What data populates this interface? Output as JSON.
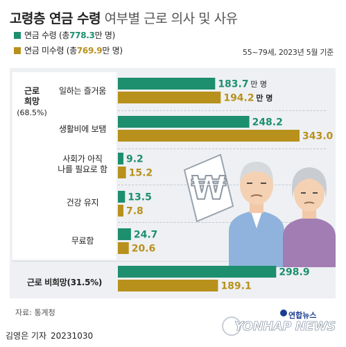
{
  "header": {
    "title_bold": "고령층 연금 수령",
    "title_rest": "여부별 근로 의사 및 사유"
  },
  "legend": {
    "series1_prefix": "연금 수령 (총 ",
    "series1_total": "778.3",
    "series1_suffix": "만 명)",
    "series2_prefix": "연금 미수령 (총 ",
    "series2_total": "769.9",
    "series2_suffix": "만 명)"
  },
  "note": "55~79세, 2023년 5월 기준",
  "groups": {
    "hope_label": "근로\n희망",
    "hope_pct": "(68.5%)",
    "nohope_label": "근로 비희망(31.5%)"
  },
  "categories": [
    {
      "label": "일하는 즐거움"
    },
    {
      "label": "생활비에 보탬"
    },
    {
      "label": "사회가 아직\n나를 필요로 함"
    },
    {
      "label": "건강 유지"
    },
    {
      "label": "무료함"
    }
  ],
  "unit_suffix": "만 명",
  "chart_data": {
    "type": "bar",
    "orientation": "horizontal",
    "categories": [
      "일하는 즐거움",
      "생활비에 보탬",
      "사회가 아직 나를 필요로 함",
      "건강 유지",
      "무료함",
      "근로 비희망(31.5%)"
    ],
    "series": [
      {
        "name": "연금 수령",
        "color": "#1d8f6e",
        "values": [
          183.7,
          248.2,
          9.2,
          13.5,
          24.7,
          298.9
        ]
      },
      {
        "name": "연금 미수령",
        "color": "#b8911c",
        "values": [
          194.2,
          343.0,
          15.2,
          7.8,
          20.6,
          189.1
        ]
      }
    ],
    "value_labels": [
      [
        "183.7",
        "248.2",
        "9.2",
        "13.5",
        "24.7",
        "298.9"
      ],
      [
        "194.2",
        "343.0",
        "15.2",
        "7.8",
        "20.6",
        "189.1"
      ]
    ],
    "unit_label": "만 명",
    "xlim": [
      0,
      343.0
    ],
    "legend_position": "top-left"
  },
  "illustration": {
    "currency_symbol": "₩"
  },
  "footer": {
    "source": "자료: 통계청",
    "author": "김영은 기자",
    "date": "20231030",
    "brand_kr": "연합뉴스",
    "brand_en": "YONHAP NEWS"
  }
}
